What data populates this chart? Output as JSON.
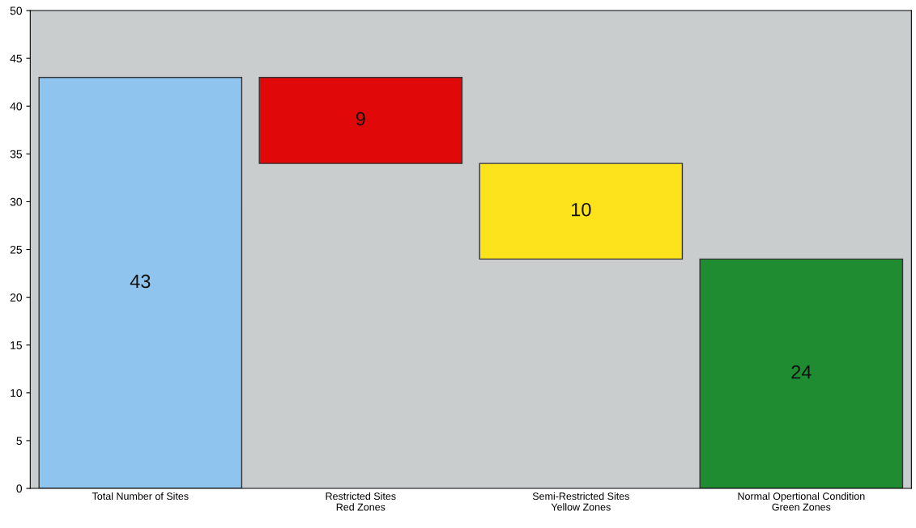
{
  "chart_data": {
    "type": "bar",
    "categories": [
      "Total Number of Sites",
      "Restricted Sites\nRed Zones",
      "Semi-Restricted Sites\nYellow Zones",
      "Normal Opertional Condition\nGreen Zones"
    ],
    "values": [
      43,
      9,
      10,
      24
    ],
    "base": [
      0,
      34,
      24,
      0
    ],
    "colors": [
      "#8ec4ee",
      "#e00808",
      "#fde31c",
      "#208c32"
    ],
    "data_labels": true,
    "ylim": [
      0,
      50
    ],
    "yticks": [
      0,
      5,
      10,
      15,
      20,
      25,
      30,
      35,
      40,
      45,
      50
    ],
    "grid": false,
    "legend": false
  }
}
